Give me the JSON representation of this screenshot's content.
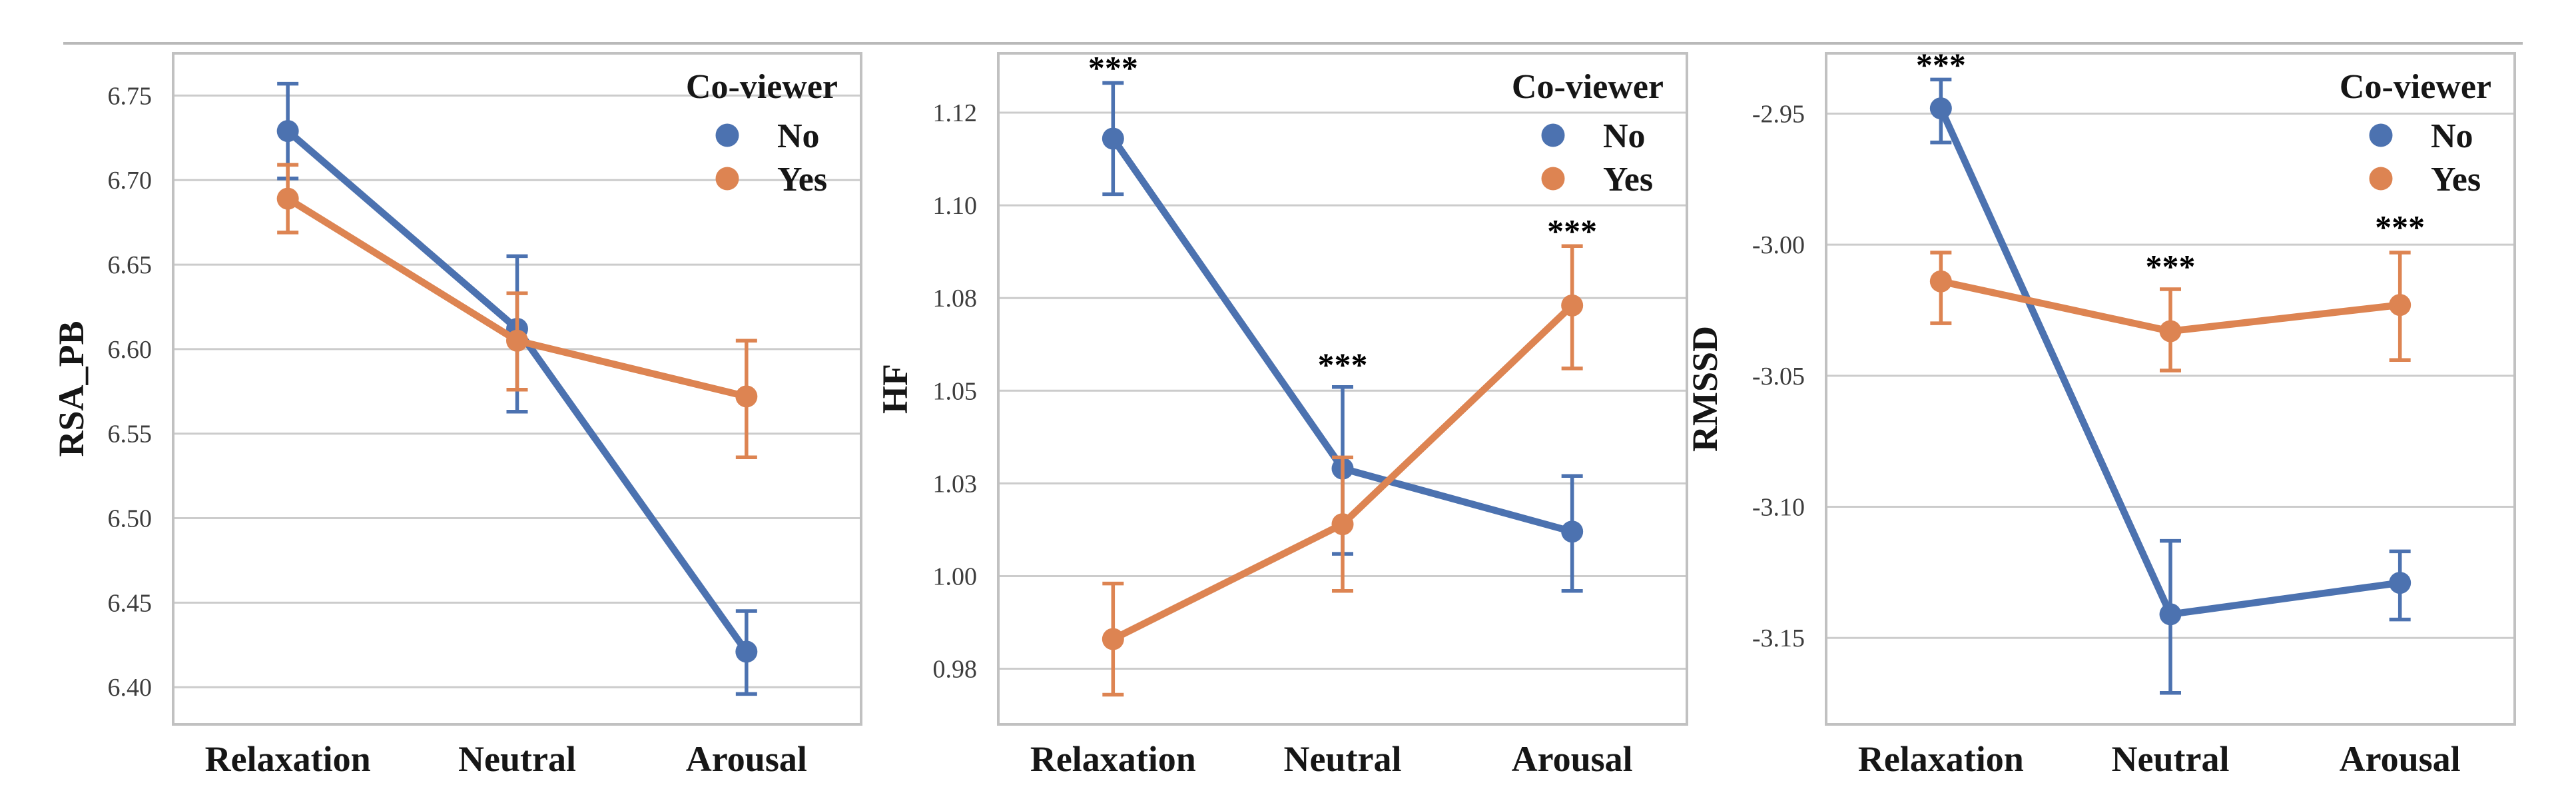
{
  "figure": {
    "background": "#ffffff",
    "top_rule_color": "#b9b9b9",
    "label_text_color": "#161616",
    "tick_text_color": "#3d3d3d",
    "grid_color": "#cccccc",
    "border_color": "#c1c1c1",
    "star_color": "#000000",
    "significance_symbol": "***",
    "legend": {
      "title": "Co-viewer",
      "items": [
        {
          "label": "No",
          "color": "#4c72b0"
        },
        {
          "label": "Yes",
          "color": "#dd8452"
        }
      ]
    },
    "categories": [
      "Relaxation",
      "Neutral",
      "Arousal"
    ]
  },
  "chart_data": [
    {
      "type": "line",
      "ylabel": "RSA_PB",
      "categories": [
        "Relaxation",
        "Neutral",
        "Arousal"
      ],
      "ylim": [
        6.378,
        6.775
      ],
      "tick_values": [
        6.75,
        6.7,
        6.65,
        6.6,
        6.55,
        6.5,
        6.45,
        6.4
      ],
      "tick_labels": [
        "6.75",
        "6.70",
        "6.65",
        "6.60",
        "6.55",
        "6.50",
        "6.45",
        "6.40"
      ],
      "grid": true,
      "legend_position": "top-right",
      "series": [
        {
          "name": "No",
          "color": "#4c72b0",
          "values": [
            6.729,
            6.612,
            6.421
          ],
          "err_low": [
            6.701,
            6.563,
            6.396
          ],
          "err_high": [
            6.757,
            6.655,
            6.445
          ]
        },
        {
          "name": "Yes",
          "color": "#dd8452",
          "values": [
            6.689,
            6.605,
            6.572
          ],
          "err_low": [
            6.669,
            6.576,
            6.536
          ],
          "err_high": [
            6.709,
            6.633,
            6.605
          ]
        }
      ],
      "stars": []
    },
    {
      "type": "line",
      "ylabel": "HF",
      "categories": [
        "Relaxation",
        "Neutral",
        "Arousal"
      ],
      "ylim": [
        0.96,
        1.141
      ],
      "tick_values": [
        1.125,
        1.1,
        1.075,
        1.05,
        1.025,
        1.0,
        0.975
      ],
      "tick_labels": [
        "1.12",
        "1.10",
        "1.08",
        "1.05",
        "1.03",
        "1.00",
        "0.98"
      ],
      "grid": true,
      "legend_position": "top-right",
      "series": [
        {
          "name": "No",
          "color": "#4c72b0",
          "values": [
            1.118,
            1.029,
            1.012
          ],
          "err_low": [
            1.103,
            1.006,
            0.996
          ],
          "err_high": [
            1.133,
            1.051,
            1.027
          ]
        },
        {
          "name": "Yes",
          "color": "#dd8452",
          "values": [
            0.983,
            1.014,
            1.073
          ],
          "err_low": [
            0.968,
            0.996,
            1.056
          ],
          "err_high": [
            0.998,
            1.032,
            1.089
          ]
        }
      ],
      "stars": [
        {
          "category": "Relaxation",
          "y": 1.138
        },
        {
          "category": "Neutral",
          "y": 1.058
        },
        {
          "category": "Arousal",
          "y": 1.094
        }
      ]
    },
    {
      "type": "line",
      "ylabel": "RMSSD",
      "categories": [
        "Relaxation",
        "Neutral",
        "Arousal"
      ],
      "ylim": [
        -3.183,
        -2.927
      ],
      "tick_values": [
        -2.95,
        -3.0,
        -3.05,
        -3.1,
        -3.15
      ],
      "tick_labels": [
        "-2.95",
        "-3.00",
        "-3.05",
        "-3.10",
        "-3.15"
      ],
      "grid": true,
      "legend_position": "top-right",
      "series": [
        {
          "name": "No",
          "color": "#4c72b0",
          "values": [
            -2.948,
            -3.141,
            -3.129
          ],
          "err_low": [
            -2.961,
            -3.171,
            -3.143
          ],
          "err_high": [
            -2.937,
            -3.113,
            -3.117
          ]
        },
        {
          "name": "Yes",
          "color": "#dd8452",
          "values": [
            -3.014,
            -3.033,
            -3.023
          ],
          "err_low": [
            -3.03,
            -3.048,
            -3.044
          ],
          "err_high": [
            -3.003,
            -3.017,
            -3.003
          ]
        }
      ],
      "stars": [
        {
          "category": "Relaxation",
          "y": -2.93
        },
        {
          "category": "Neutral",
          "y": -3.007
        },
        {
          "category": "Arousal",
          "y": -2.992
        }
      ]
    }
  ]
}
